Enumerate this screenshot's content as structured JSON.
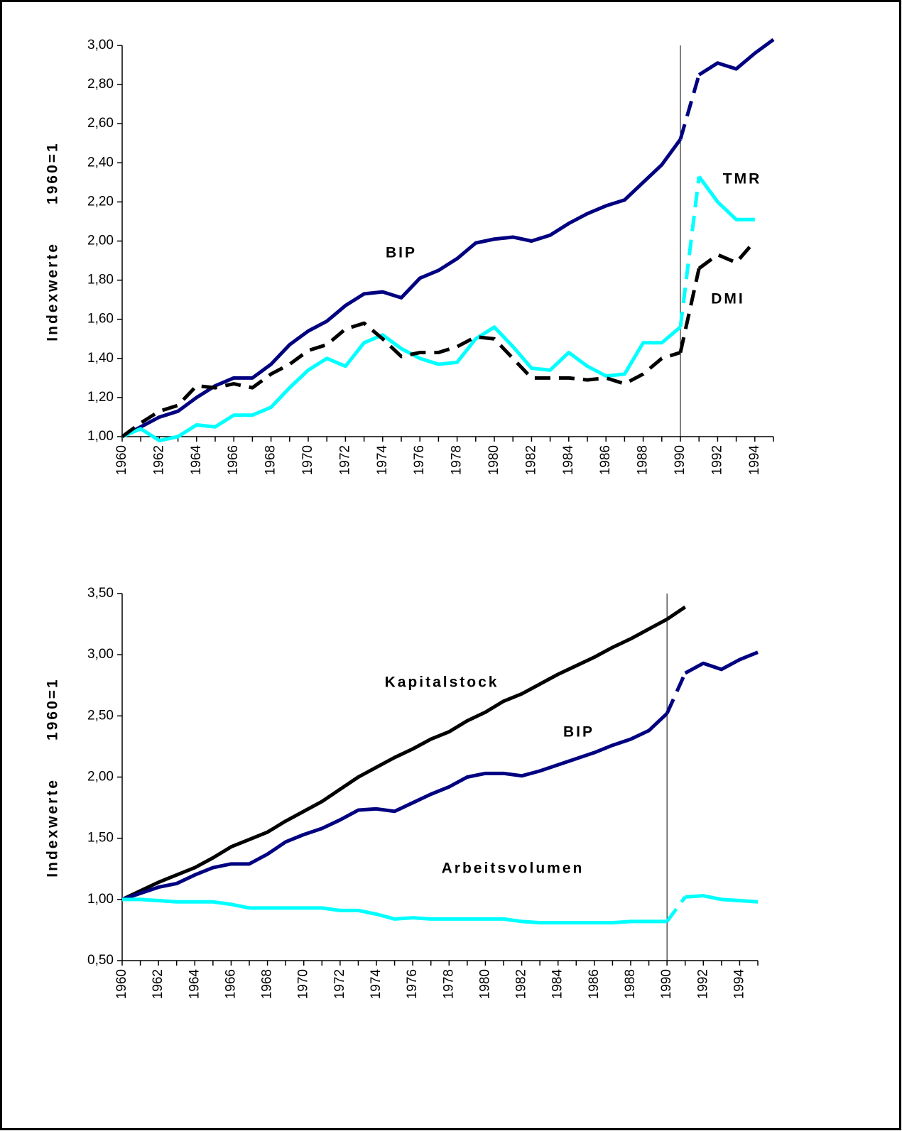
{
  "chart_data": [
    {
      "type": "line",
      "ylabel": "Indexwerte      1960=1",
      "x": [
        1960,
        1961,
        1962,
        1963,
        1964,
        1965,
        1966,
        1967,
        1968,
        1969,
        1970,
        1971,
        1972,
        1973,
        1974,
        1975,
        1976,
        1977,
        1978,
        1979,
        1980,
        1981,
        1982,
        1983,
        1984,
        1985,
        1986,
        1987,
        1988,
        1989,
        1990,
        1991,
        1992,
        1993,
        1994,
        1995
      ],
      "xlim": [
        1960,
        1995
      ],
      "xticks": [
        1960,
        1962,
        1964,
        1966,
        1968,
        1970,
        1972,
        1974,
        1976,
        1978,
        1980,
        1982,
        1984,
        1986,
        1988,
        1990,
        1992,
        1994
      ],
      "ylim": [
        1,
        3
      ],
      "yticks": [
        {
          "value": 1,
          "label": "1,00"
        },
        {
          "value": 1.2,
          "label": "1,20"
        },
        {
          "value": 1.4,
          "label": "1,40"
        },
        {
          "value": 1.6,
          "label": "1,60"
        },
        {
          "value": 1.8,
          "label": "1,80"
        },
        {
          "value": 2,
          "label": "2,00"
        },
        {
          "value": 2.2,
          "label": "2,20"
        },
        {
          "value": 2.4,
          "label": "2,40"
        },
        {
          "value": 2.6,
          "label": "2,60"
        },
        {
          "value": 2.8,
          "label": "2,80"
        },
        {
          "value": 3,
          "label": "3,00"
        }
      ],
      "grid": false,
      "vline": 1990,
      "series": [
        {
          "name": "BIP",
          "color": "#000080",
          "dash": false,
          "break_dashed": true,
          "values": [
            1.0,
            1.05,
            1.1,
            1.13,
            1.2,
            1.26,
            1.3,
            1.3,
            1.37,
            1.47,
            1.54,
            1.59,
            1.67,
            1.73,
            1.74,
            1.71,
            1.81,
            1.85,
            1.91,
            1.99,
            2.01,
            2.02,
            2.0,
            2.03,
            2.09,
            2.14,
            2.18,
            2.21,
            2.3,
            2.39,
            2.52,
            2.85,
            2.91,
            2.88,
            2.96,
            3.03
          ]
        },
        {
          "name": "TMR",
          "color": "#00ffff",
          "dash": false,
          "break_dashed": true,
          "values": [
            1.0,
            1.04,
            0.98,
            1.0,
            1.06,
            1.05,
            1.11,
            1.11,
            1.15,
            1.25,
            1.34,
            1.4,
            1.36,
            1.48,
            1.52,
            1.45,
            1.4,
            1.37,
            1.38,
            1.5,
            1.56,
            1.46,
            1.35,
            1.34,
            1.43,
            1.36,
            1.31,
            1.32,
            1.48,
            1.48,
            1.56,
            2.33,
            2.2,
            2.11,
            2.11,
            null
          ]
        },
        {
          "name": "DMI",
          "color": "#000000",
          "dash": true,
          "break_dashed": true,
          "values": [
            1.0,
            1.07,
            1.13,
            1.16,
            1.26,
            1.25,
            1.27,
            1.25,
            1.32,
            1.37,
            1.44,
            1.47,
            1.55,
            1.58,
            1.5,
            1.41,
            1.43,
            1.43,
            1.46,
            1.51,
            1.5,
            1.4,
            1.3,
            1.3,
            1.3,
            1.29,
            1.3,
            1.27,
            1.32,
            1.4,
            1.43,
            1.86,
            1.93,
            1.89,
            2.0,
            null
          ]
        }
      ]
    },
    {
      "type": "line",
      "ylabel": "Indexwerte      1960=1",
      "x": [
        1960,
        1961,
        1962,
        1963,
        1964,
        1965,
        1966,
        1967,
        1968,
        1969,
        1970,
        1971,
        1972,
        1973,
        1974,
        1975,
        1976,
        1977,
        1978,
        1979,
        1980,
        1981,
        1982,
        1983,
        1984,
        1985,
        1986,
        1987,
        1988,
        1989,
        1990,
        1991,
        1992,
        1993,
        1994,
        1995
      ],
      "xlim": [
        1960,
        1995
      ],
      "xticks": [
        1960,
        1962,
        1964,
        1966,
        1968,
        1970,
        1972,
        1974,
        1976,
        1978,
        1980,
        1982,
        1984,
        1986,
        1988,
        1990,
        1992,
        1994
      ],
      "ylim": [
        0.5,
        3.5
      ],
      "yticks": [
        {
          "value": 0.5,
          "label": "0,50"
        },
        {
          "value": 1,
          "label": "1,00"
        },
        {
          "value": 1.5,
          "label": "1,50"
        },
        {
          "value": 2,
          "label": "2,00"
        },
        {
          "value": 2.5,
          "label": "2,50"
        },
        {
          "value": 3,
          "label": "3,00"
        },
        {
          "value": 3.5,
          "label": "3,50"
        }
      ],
      "grid": false,
      "vline": 1990,
      "series": [
        {
          "name": "Kapitalstock",
          "color": "#000000",
          "dash": false,
          "break_dashed": false,
          "values": [
            1.0,
            1.07,
            1.14,
            1.2,
            1.26,
            1.34,
            1.43,
            1.49,
            1.55,
            1.64,
            1.72,
            1.8,
            1.9,
            2.0,
            2.08,
            2.16,
            2.23,
            2.31,
            2.37,
            2.46,
            2.53,
            2.62,
            2.68,
            2.76,
            2.84,
            2.91,
            2.98,
            3.06,
            3.13,
            3.21,
            3.29,
            3.39,
            null,
            null,
            null,
            null
          ]
        },
        {
          "name": "BIP",
          "color": "#000080",
          "dash": false,
          "break_dashed": true,
          "values": [
            1.0,
            1.05,
            1.1,
            1.13,
            1.2,
            1.26,
            1.29,
            1.29,
            1.37,
            1.47,
            1.53,
            1.58,
            1.65,
            1.73,
            1.74,
            1.72,
            1.79,
            1.86,
            1.92,
            2.0,
            2.03,
            2.03,
            2.01,
            2.05,
            2.1,
            2.15,
            2.2,
            2.26,
            2.31,
            2.38,
            2.52,
            2.85,
            2.93,
            2.88,
            2.96,
            3.02
          ]
        },
        {
          "name": "Arbeitsvolumen",
          "color": "#00ffff",
          "dash": false,
          "break_dashed": true,
          "values": [
            1.0,
            1.0,
            0.99,
            0.98,
            0.98,
            0.98,
            0.96,
            0.93,
            0.93,
            0.93,
            0.93,
            0.93,
            0.91,
            0.91,
            0.88,
            0.84,
            0.85,
            0.84,
            0.84,
            0.84,
            0.84,
            0.84,
            0.82,
            0.81,
            0.81,
            0.81,
            0.81,
            0.81,
            0.82,
            0.82,
            0.82,
            1.02,
            1.03,
            1.0,
            0.99,
            0.98
          ]
        }
      ]
    }
  ]
}
